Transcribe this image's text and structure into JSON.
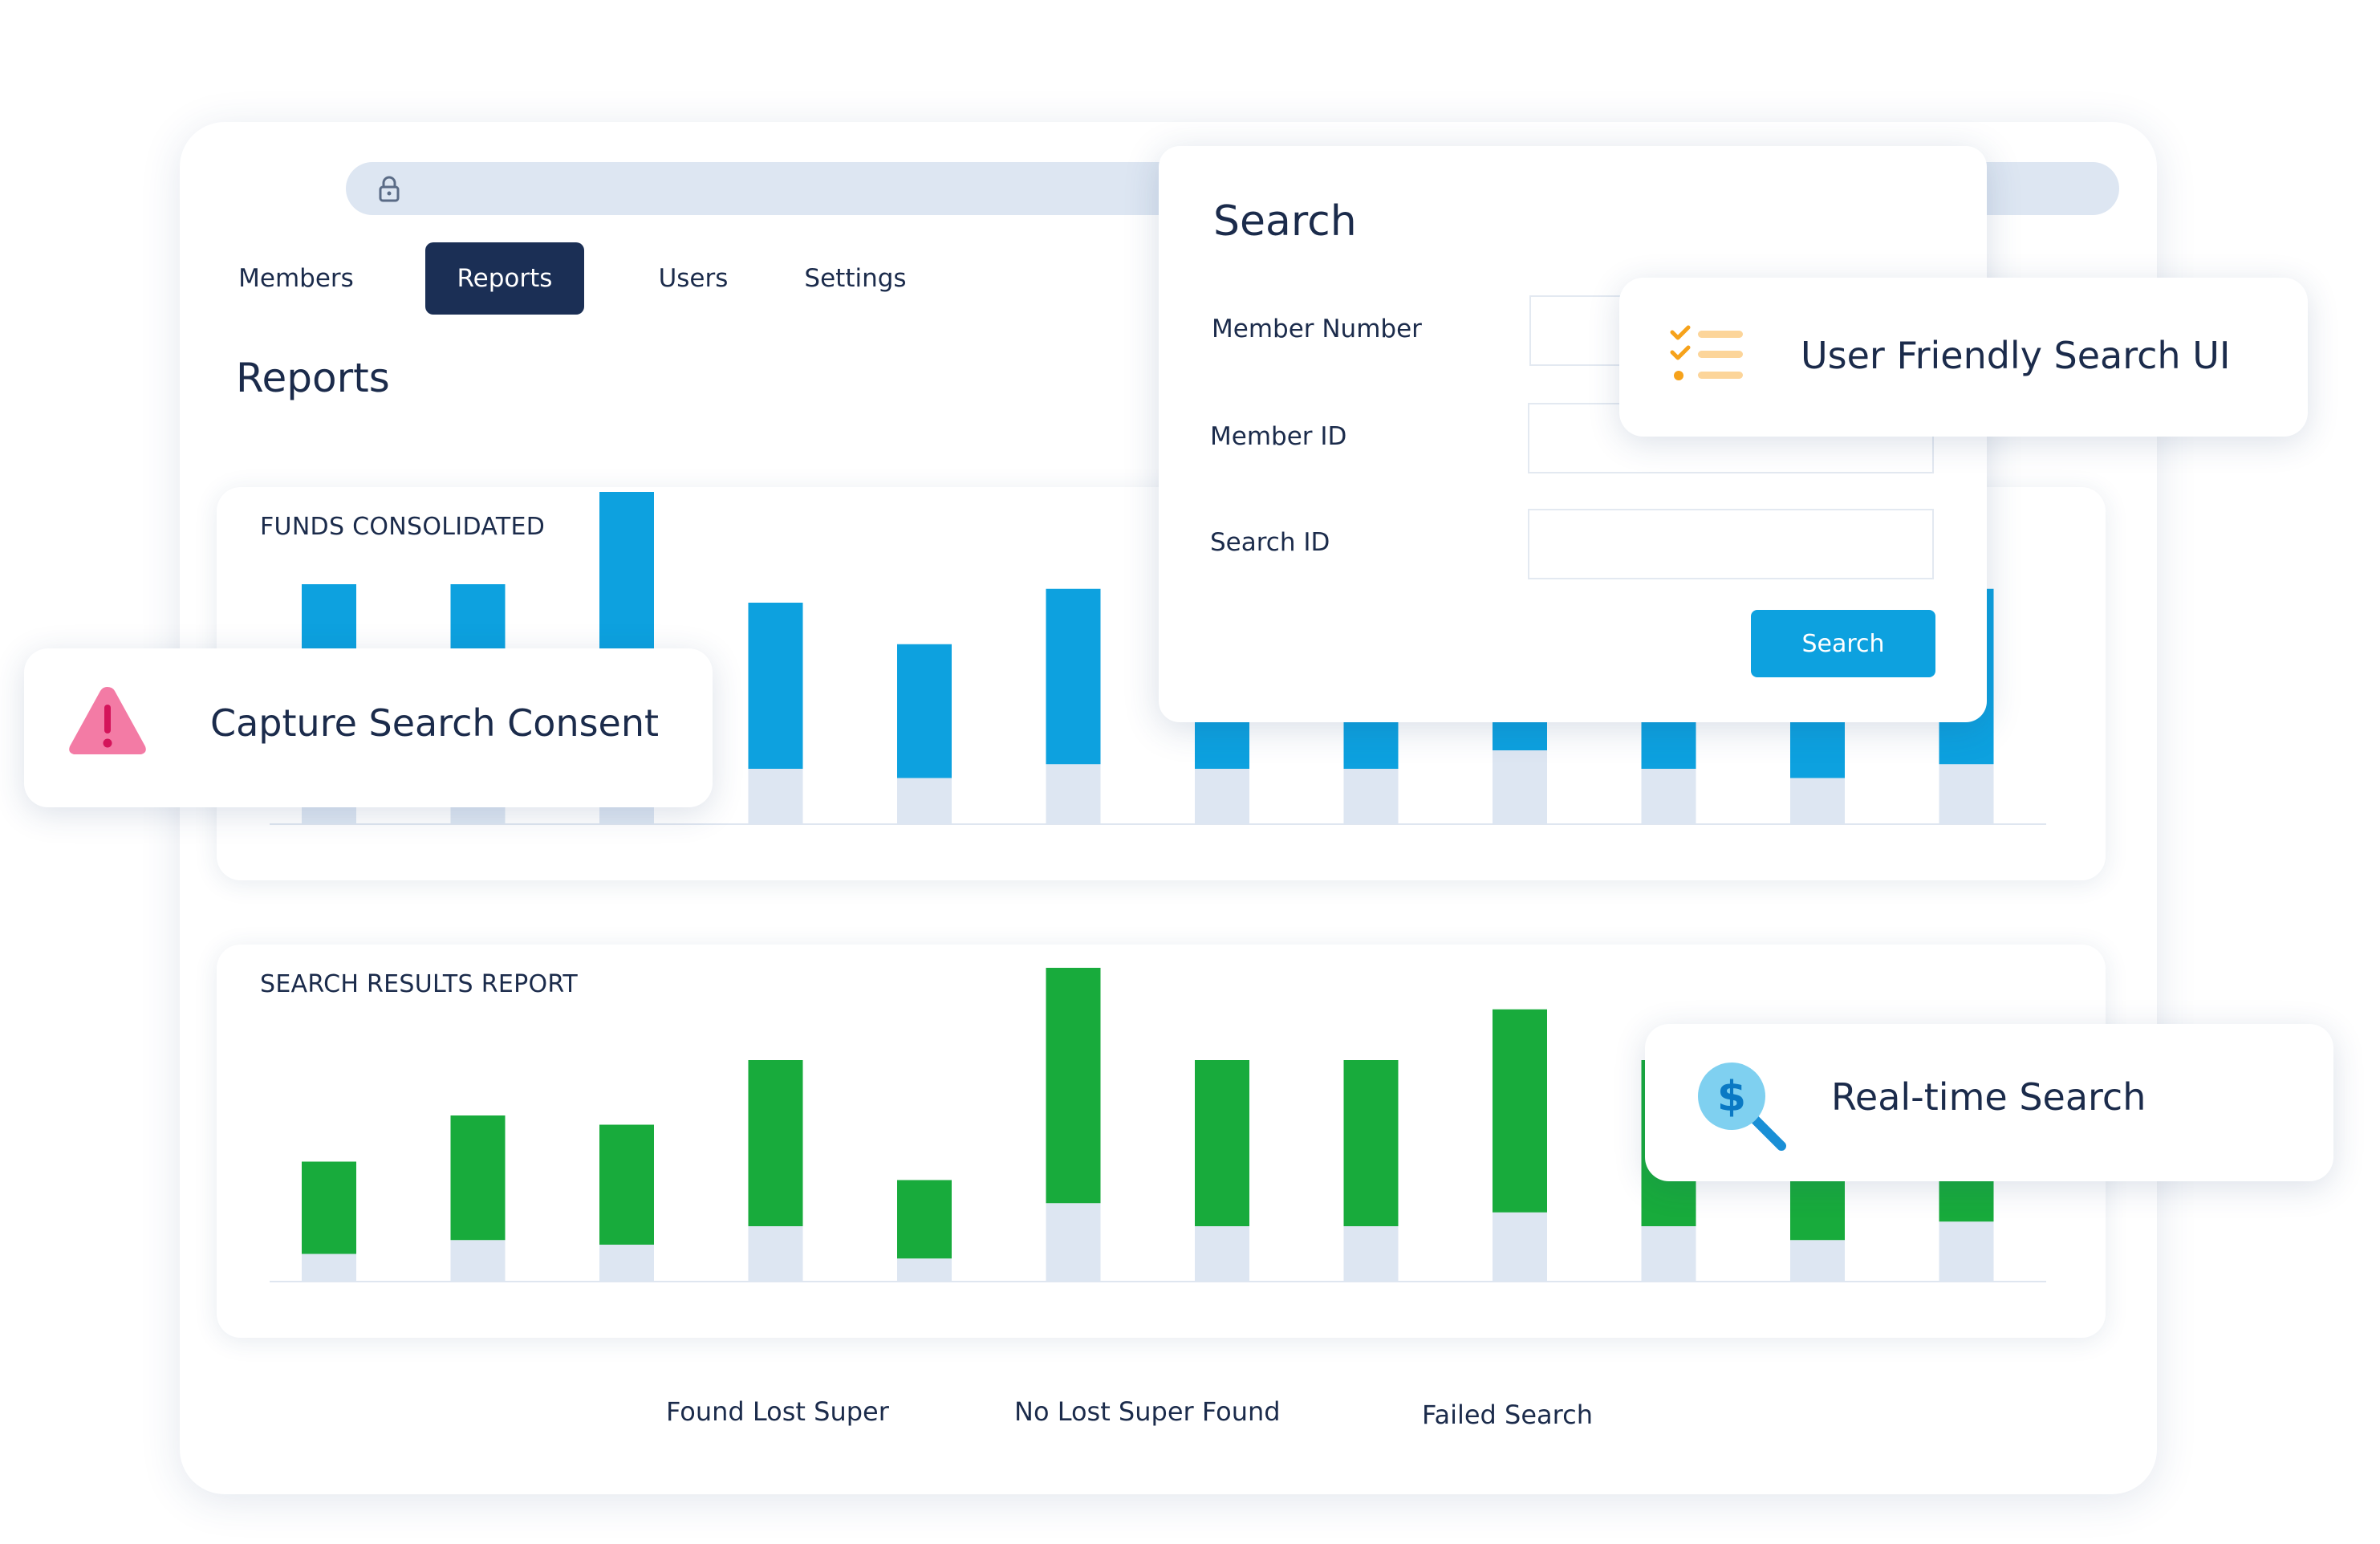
{
  "browser": {
    "dots": [
      "#1b2f55",
      "#2a66b4",
      "#0da1df"
    ],
    "address_icon": "lock-icon"
  },
  "nav": {
    "tabs": [
      {
        "label": "Members",
        "active": false
      },
      {
        "label": "Reports",
        "active": true
      },
      {
        "label": "Users",
        "active": false
      },
      {
        "label": "Settings",
        "active": false
      }
    ]
  },
  "page": {
    "title": "Reports"
  },
  "funds_panel": {
    "title": "FUNDS CONSOLIDATED"
  },
  "results_panel": {
    "title": "SEARCH RESULTS REPORT"
  },
  "legend": {
    "items": [
      "Found Lost Super",
      "No Lost Super Found",
      "Failed Search"
    ]
  },
  "search_card": {
    "title": "Search",
    "fields": [
      {
        "label": "Member Number",
        "value": "",
        "placeholder": ""
      },
      {
        "label": "Member ID",
        "value": "",
        "placeholder": ""
      },
      {
        "label": "Search ID",
        "value": "",
        "placeholder": ""
      }
    ],
    "button": "Search"
  },
  "callouts": {
    "user_friendly": {
      "text": "User Friendly Search UI",
      "icon": "checklist-icon"
    },
    "consent": {
      "text": "Capture  Search Consent",
      "icon": "warning-triangle-icon"
    },
    "realtime": {
      "text": "Real-time Search",
      "icon": "dollar-search-icon"
    }
  },
  "colors": {
    "navy": "#1b2f55",
    "blue_bar": "#0da1df",
    "green_bar": "#18ab3c",
    "light_bar": "#dde6f2",
    "warning_pink": "#f37ba5",
    "check_orange": "#f6a21b"
  },
  "chart_data": [
    {
      "type": "bar",
      "title": "FUNDS CONSOLIDATED",
      "stacked": true,
      "categories": [
        "",
        "",
        "",
        "",
        "",
        "",
        "",
        "",
        "",
        "",
        "",
        ""
      ],
      "series": [
        {
          "values": [
            12,
            12,
            12,
            12,
            10,
            13,
            12,
            12,
            16,
            12,
            10,
            13
          ]
        },
        {
          "values": [
            40,
            40,
            60,
            36,
            29,
            38,
            36,
            36,
            36,
            36,
            29,
            38
          ]
        }
      ]
    },
    {
      "type": "bar",
      "title": "SEARCH RESULTS REPORT",
      "stacked": true,
      "categories": [
        "",
        "",
        "",
        "",
        "",
        "",
        "",
        "",
        "",
        "",
        "",
        ""
      ],
      "series": [
        {
          "values": [
            6,
            9,
            8,
            12,
            5,
            17,
            12,
            12,
            15,
            12,
            9,
            13
          ]
        },
        {
          "values": [
            20,
            27,
            26,
            36,
            17,
            51,
            36,
            36,
            44,
            36,
            27,
            38
          ]
        }
      ]
    }
  ]
}
